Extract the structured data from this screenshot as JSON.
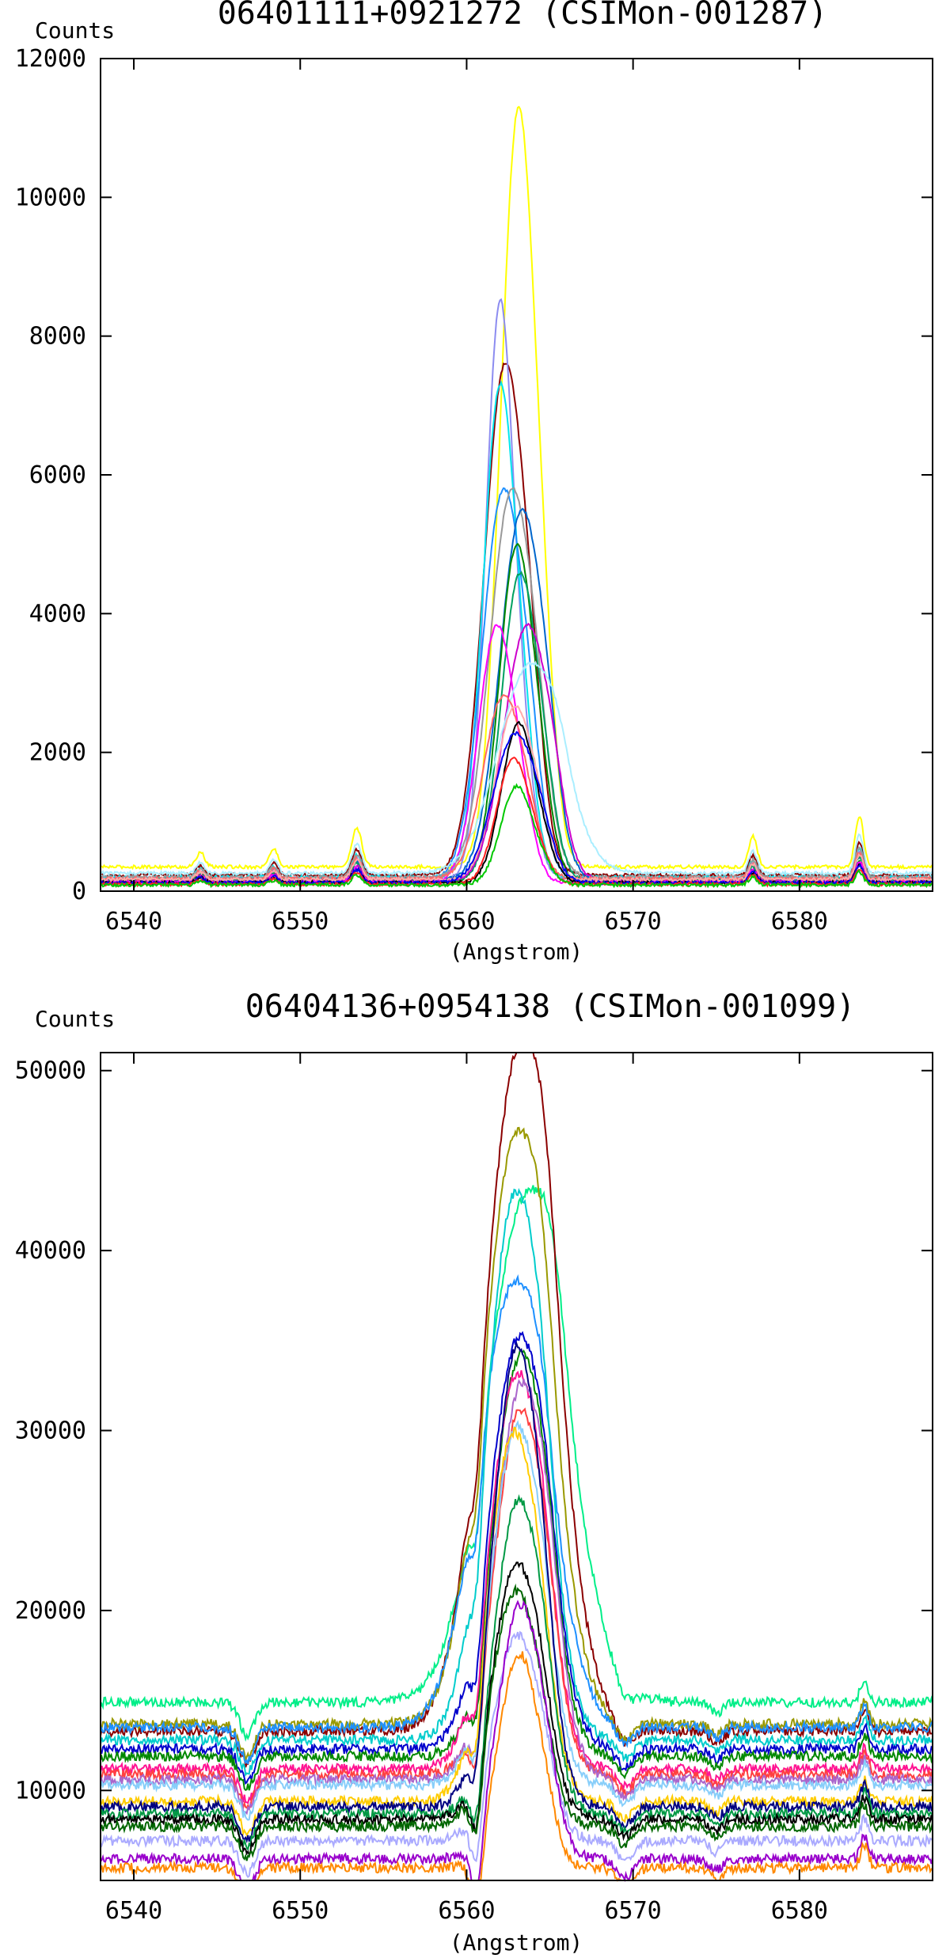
{
  "chart_data": [
    {
      "type": "line",
      "title": "06401111+0921272 (CSIMon-001287)",
      "ylabel": "Counts",
      "xlabel": "(Angstrom)",
      "xlim": [
        6538,
        6588
      ],
      "ylim": [
        0,
        12000
      ],
      "xticks": [
        6540,
        6550,
        6560,
        6570,
        6580
      ],
      "xtick_labels": [
        "6540",
        "6550",
        "6560",
        "6570",
        "6580"
      ],
      "yticks": [
        0,
        2000,
        4000,
        6000,
        8000,
        10000,
        12000
      ],
      "ytick_labels": [
        "0",
        "2000",
        "4000",
        "6000",
        "8000",
        "10000",
        "12000"
      ],
      "grid": false,
      "legend": "none",
      "series": [
        {
          "color": "#ffff00",
          "base": 350,
          "center": 6563.1,
          "peak": 11200,
          "width": 1.05
        },
        {
          "color": "#8b0000",
          "base": 230,
          "center": 6562.3,
          "peak": 7550,
          "width": 1.25
        },
        {
          "color": "#8c8cf0",
          "base": 180,
          "center": 6562.0,
          "peak": 8450,
          "width": 0.85
        },
        {
          "color": "#00e5ee",
          "base": 200,
          "center": 6562.0,
          "peak": 7250,
          "width": 1.0
        },
        {
          "color": "#1e90ff",
          "base": 170,
          "center": 6562.2,
          "peak": 5750,
          "width": 1.25
        },
        {
          "color": "#999999",
          "base": 200,
          "center": 6562.7,
          "peak": 5750,
          "width": 1.3
        },
        {
          "color": "#0066cc",
          "base": 160,
          "center": 6563.3,
          "peak": 5450,
          "width": 1.3
        },
        {
          "color": "#008800",
          "base": 140,
          "center": 6563.0,
          "peak": 4950,
          "width": 1.05
        },
        {
          "color": "#00a060",
          "base": 160,
          "center": 6563.2,
          "peak": 4550,
          "width": 1.1
        },
        {
          "color": "#cc00cc",
          "base": 140,
          "center": 6563.6,
          "peak": 3800,
          "width": 1.35
        },
        {
          "color": "#ff00ff",
          "base": 130,
          "center": 6561.8,
          "peak": 3800,
          "width": 1.1
        },
        {
          "color": "#aaeeff",
          "base": 260,
          "center": 6563.8,
          "peak": 3250,
          "width": 1.9
        },
        {
          "color": "#ff6666",
          "base": 180,
          "center": 6562.2,
          "peak": 2800,
          "width": 1.2
        },
        {
          "color": "#ffaaaa",
          "base": 170,
          "center": 6562.9,
          "peak": 2650,
          "width": 1.15
        },
        {
          "color": "#000000",
          "base": 120,
          "center": 6563.1,
          "peak": 2400,
          "width": 1.0
        },
        {
          "color": "#0000ee",
          "base": 120,
          "center": 6562.9,
          "peak": 2250,
          "width": 1.3
        },
        {
          "color": "#ff2020",
          "base": 100,
          "center": 6562.8,
          "peak": 1900,
          "width": 1.0
        },
        {
          "color": "#00c800",
          "base": 90,
          "center": 6563.0,
          "peak": 1500,
          "width": 0.95
        }
      ],
      "features": [
        {
          "x": 6544.0,
          "depth": 120,
          "width": 0.25
        },
        {
          "x": 6548.4,
          "depth": 150,
          "width": 0.25
        },
        {
          "x": 6553.4,
          "depth": 320,
          "width": 0.3
        },
        {
          "x": 6577.2,
          "depth": 250,
          "width": 0.25
        },
        {
          "x": 6583.6,
          "depth": 420,
          "width": 0.25
        }
      ]
    },
    {
      "type": "line",
      "title": "06404136+0954138 (CSIMon-001099)",
      "ylabel": "Counts",
      "xlabel": "(Angstrom)",
      "xlim": [
        6538,
        6588
      ],
      "ylim": [
        5000,
        51000
      ],
      "xticks": [
        6540,
        6550,
        6560,
        6570,
        6580
      ],
      "xtick_labels": [
        "6540",
        "6550",
        "6560",
        "6570",
        "6580"
      ],
      "yticks": [
        10000,
        20000,
        30000,
        40000,
        50000
      ],
      "ytick_labels": [
        "10000",
        "20000",
        "30000",
        "40000",
        "50000"
      ],
      "grid": false,
      "legend": "none",
      "series": [
        {
          "color": "#00ee88",
          "base": 14900,
          "center": 6563.6,
          "peak": 43000,
          "width": 2.4
        },
        {
          "color": "#8b0000",
          "base": 13300,
          "center": 6563.2,
          "peak": 51200,
          "width": 2.1
        },
        {
          "color": "#999900",
          "base": 13700,
          "center": 6563.0,
          "peak": 46300,
          "width": 2.0
        },
        {
          "color": "#1e90ff",
          "base": 13500,
          "center": 6562.8,
          "peak": 38000,
          "width": 2.1
        },
        {
          "color": "#00cccc",
          "base": 12800,
          "center": 6562.9,
          "peak": 43000,
          "width": 1.7
        },
        {
          "color": "#0000cc",
          "base": 12300,
          "center": 6563.1,
          "peak": 35000,
          "width": 1.7
        },
        {
          "color": "#008800",
          "base": 11900,
          "center": 6563.2,
          "peak": 34000,
          "width": 1.6
        },
        {
          "color": "#ff1493",
          "base": 11200,
          "center": 6563.0,
          "peak": 33000,
          "width": 1.6
        },
        {
          "color": "#ff4040",
          "base": 10900,
          "center": 6563.2,
          "peak": 31000,
          "width": 1.5
        },
        {
          "color": "#aa66cc",
          "base": 10600,
          "center": 6563.3,
          "peak": 32500,
          "width": 1.6
        },
        {
          "color": "#87cefa",
          "base": 10300,
          "center": 6563.0,
          "peak": 30000,
          "width": 1.5
        },
        {
          "color": "#ffcc00",
          "base": 9400,
          "center": 6562.8,
          "peak": 29700,
          "width": 1.5
        },
        {
          "color": "#000080",
          "base": 9100,
          "center": 6563.0,
          "peak": 34500,
          "width": 1.4
        },
        {
          "color": "#009944",
          "base": 8700,
          "center": 6563.1,
          "peak": 26000,
          "width": 1.4
        },
        {
          "color": "#000000",
          "base": 8400,
          "center": 6563.0,
          "peak": 22500,
          "width": 1.4
        },
        {
          "color": "#006600",
          "base": 8000,
          "center": 6562.9,
          "peak": 21000,
          "width": 1.4
        },
        {
          "color": "#aaaaff",
          "base": 7200,
          "center": 6563.0,
          "peak": 18500,
          "width": 1.4
        },
        {
          "color": "#9900cc",
          "base": 6200,
          "center": 6563.2,
          "peak": 20200,
          "width": 1.3
        },
        {
          "color": "#ff8800",
          "base": 5700,
          "center": 6563.1,
          "peak": 17500,
          "width": 1.2
        }
      ],
      "features": [
        {
          "x": 6546.8,
          "depth": -1800,
          "width": 0.45
        },
        {
          "x": 6560.6,
          "depth": -3500,
          "width": 0.35
        },
        {
          "x": 6569.5,
          "depth": -1000,
          "width": 0.5
        },
        {
          "x": 6583.9,
          "depth": 1200,
          "width": 0.25
        },
        {
          "x": 6575.0,
          "depth": -600,
          "width": 0.4
        }
      ]
    }
  ]
}
